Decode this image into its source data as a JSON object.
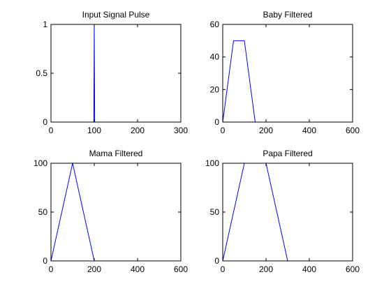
{
  "chart_data": [
    {
      "type": "line",
      "title": "Input Signal Pulse",
      "xlim": [
        0,
        300
      ],
      "ylim": [
        0,
        1
      ],
      "xticks": [
        0,
        100,
        200,
        300
      ],
      "yticks": [
        0,
        0.5,
        1
      ],
      "xtick_labels": [
        "0",
        "100",
        "200",
        "300"
      ],
      "ytick_labels": [
        "0",
        "0.5",
        "1"
      ],
      "grid": false,
      "color": "#0000ff",
      "x": [
        0,
        99,
        100,
        101,
        300
      ],
      "y": [
        0,
        0,
        1,
        0,
        0
      ]
    },
    {
      "type": "line",
      "title": "Baby Filtered",
      "xlim": [
        0,
        600
      ],
      "ylim": [
        0,
        60
      ],
      "xticks": [
        0,
        200,
        400,
        600
      ],
      "yticks": [
        0,
        20,
        40,
        60
      ],
      "xtick_labels": [
        "0",
        "200",
        "400",
        "600"
      ],
      "ytick_labels": [
        "0",
        "20",
        "40",
        "60"
      ],
      "grid": false,
      "color": "#0000ff",
      "x": [
        0,
        50,
        100,
        150
      ],
      "y": [
        0,
        50,
        50,
        0
      ]
    },
    {
      "type": "line",
      "title": "Mama Filtered",
      "xlim": [
        0,
        600
      ],
      "ylim": [
        0,
        100
      ],
      "xticks": [
        0,
        200,
        400,
        600
      ],
      "yticks": [
        0,
        50,
        100
      ],
      "xtick_labels": [
        "0",
        "200",
        "400",
        "600"
      ],
      "ytick_labels": [
        "0",
        "50",
        "100"
      ],
      "grid": false,
      "color": "#0000ff",
      "x": [
        0,
        100,
        200
      ],
      "y": [
        0,
        100,
        0
      ]
    },
    {
      "type": "line",
      "title": "Papa Filtered",
      "xlim": [
        0,
        600
      ],
      "ylim": [
        0,
        100
      ],
      "xticks": [
        0,
        200,
        400,
        600
      ],
      "yticks": [
        0,
        50,
        100
      ],
      "xtick_labels": [
        "0",
        "200",
        "400",
        "600"
      ],
      "ytick_labels": [
        "0",
        "50",
        "100"
      ],
      "grid": false,
      "color": "#0000ff",
      "x": [
        0,
        100,
        200,
        300
      ],
      "y": [
        0,
        100,
        100,
        0
      ]
    }
  ]
}
